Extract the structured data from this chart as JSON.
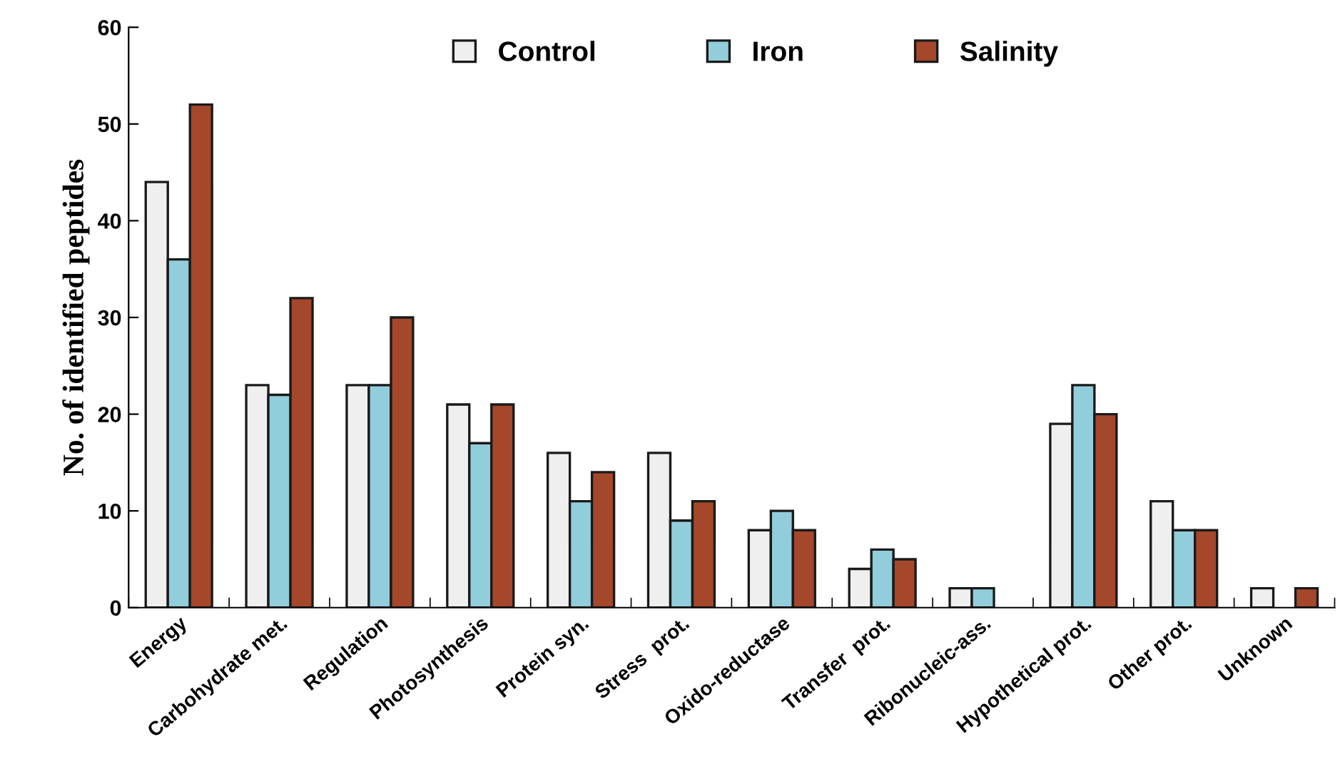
{
  "chart_data": {
    "type": "bar",
    "ylabel": "No. of identified peptides",
    "categories": [
      "Energy",
      "Carbohydrate met.",
      "Regulation",
      "Photosynthesis",
      "Protein syn.",
      "Stress  prot.",
      "Oxido-reductase",
      "Transfer  prot.",
      "Ribonucleic-ass.",
      "Hypothetical prot.",
      "Other prot.",
      "Unknown"
    ],
    "series": [
      {
        "name": "Control",
        "color": "#efefef",
        "values": [
          44,
          23,
          23,
          21,
          16,
          16,
          8,
          4,
          2,
          19,
          11,
          2
        ]
      },
      {
        "name": "Iron",
        "color": "#92cddc",
        "values": [
          36,
          22,
          23,
          17,
          11,
          9,
          10,
          6,
          2,
          23,
          8,
          0
        ]
      },
      {
        "name": "Salinity",
        "color": "#a5472a",
        "values": [
          52,
          32,
          30,
          21,
          14,
          11,
          8,
          5,
          0,
          20,
          8,
          2
        ]
      }
    ],
    "ylim": [
      0,
      60
    ],
    "yticks": [
      0,
      10,
      20,
      30,
      40,
      50,
      60
    ],
    "grid": false,
    "legend": "top"
  }
}
